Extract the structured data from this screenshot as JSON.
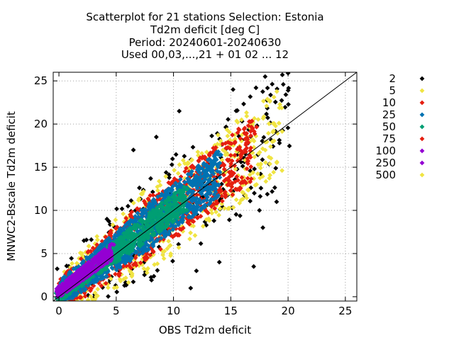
{
  "chart_data": {
    "type": "scatter",
    "title_lines": [
      "Scatterplot for   21 stations Selection: Estonia",
      "Td2m deficit [deg C]",
      "Period: 20240601-20240630",
      "Used 00,03,...,21 + 01 02 ... 12"
    ],
    "xlabel": "OBS Td2m deficit",
    "ylabel": "MNWC2-Bscale Td2m deficit",
    "xlim": [
      -0.5,
      26
    ],
    "ylim": [
      -0.5,
      26
    ],
    "xticks": [
      0,
      5,
      10,
      15,
      20,
      25
    ],
    "yticks": [
      0,
      5,
      10,
      15,
      20,
      25
    ],
    "grid": true,
    "diagonal_reference_line": true,
    "legend_position": "right",
    "legend": [
      {
        "label": "2",
        "color": "#000000"
      },
      {
        "label": "5",
        "color": "#f0e442"
      },
      {
        "label": "10",
        "color": "#e51e10"
      },
      {
        "label": "25",
        "color": "#0072b2"
      },
      {
        "label": "50",
        "color": "#009e73"
      },
      {
        "label": "75",
        "color": "#e51e10"
      },
      {
        "label": "100",
        "color": "#9400d3"
      },
      {
        "label": "250",
        "color": "#9400d3"
      },
      {
        "label": "500",
        "color": "#f0e442"
      }
    ],
    "density_bands": [
      {
        "level": "2",
        "color": "#000000",
        "center_offset": 0.0,
        "half_width": 6.5,
        "x_range": [
          0,
          20
        ],
        "count": 240,
        "marker": "◆"
      },
      {
        "level": "5",
        "color": "#f0e442",
        "center_offset": 0.0,
        "half_width": 5.0,
        "x_range": [
          0,
          19.5
        ],
        "count": 520,
        "marker": "◆"
      },
      {
        "level": "10",
        "color": "#e51e10",
        "center_offset": 0.2,
        "half_width": 3.6,
        "x_range": [
          0,
          17
        ],
        "count": 720,
        "marker": "◆"
      },
      {
        "level": "25",
        "color": "#0072b2",
        "center_offset": 0.3,
        "half_width": 2.7,
        "x_range": [
          0,
          14
        ],
        "count": 1100,
        "marker": "◆"
      },
      {
        "level": "50",
        "color": "#009e73",
        "center_offset": 0.3,
        "half_width": 1.6,
        "x_range": [
          0,
          11
        ],
        "count": 800,
        "marker": "◆"
      },
      {
        "level": "100",
        "color": "#9400d3",
        "center_offset": 0.6,
        "half_width": 1.2,
        "x_range": [
          0,
          4.5
        ],
        "count": 420,
        "marker": "◆"
      }
    ],
    "outlier_points": [
      {
        "x": 18.0,
        "y": 25.5
      },
      {
        "x": 19.5,
        "y": 25.7
      },
      {
        "x": 17.2,
        "y": 24.2
      },
      {
        "x": 20.0,
        "y": 25.9
      },
      {
        "x": 15.2,
        "y": 24.0
      },
      {
        "x": 19.0,
        "y": 11.0
      },
      {
        "x": 17.5,
        "y": 10.0
      },
      {
        "x": 17.8,
        "y": 8.0
      },
      {
        "x": 12.0,
        "y": 3.0
      },
      {
        "x": 14.0,
        "y": 4.0
      },
      {
        "x": 11.5,
        "y": 1.0
      },
      {
        "x": 17.0,
        "y": 3.5
      },
      {
        "x": 6.5,
        "y": 17.0
      },
      {
        "x": 8.5,
        "y": 18.5
      },
      {
        "x": 10.5,
        "y": 21.5
      }
    ]
  }
}
